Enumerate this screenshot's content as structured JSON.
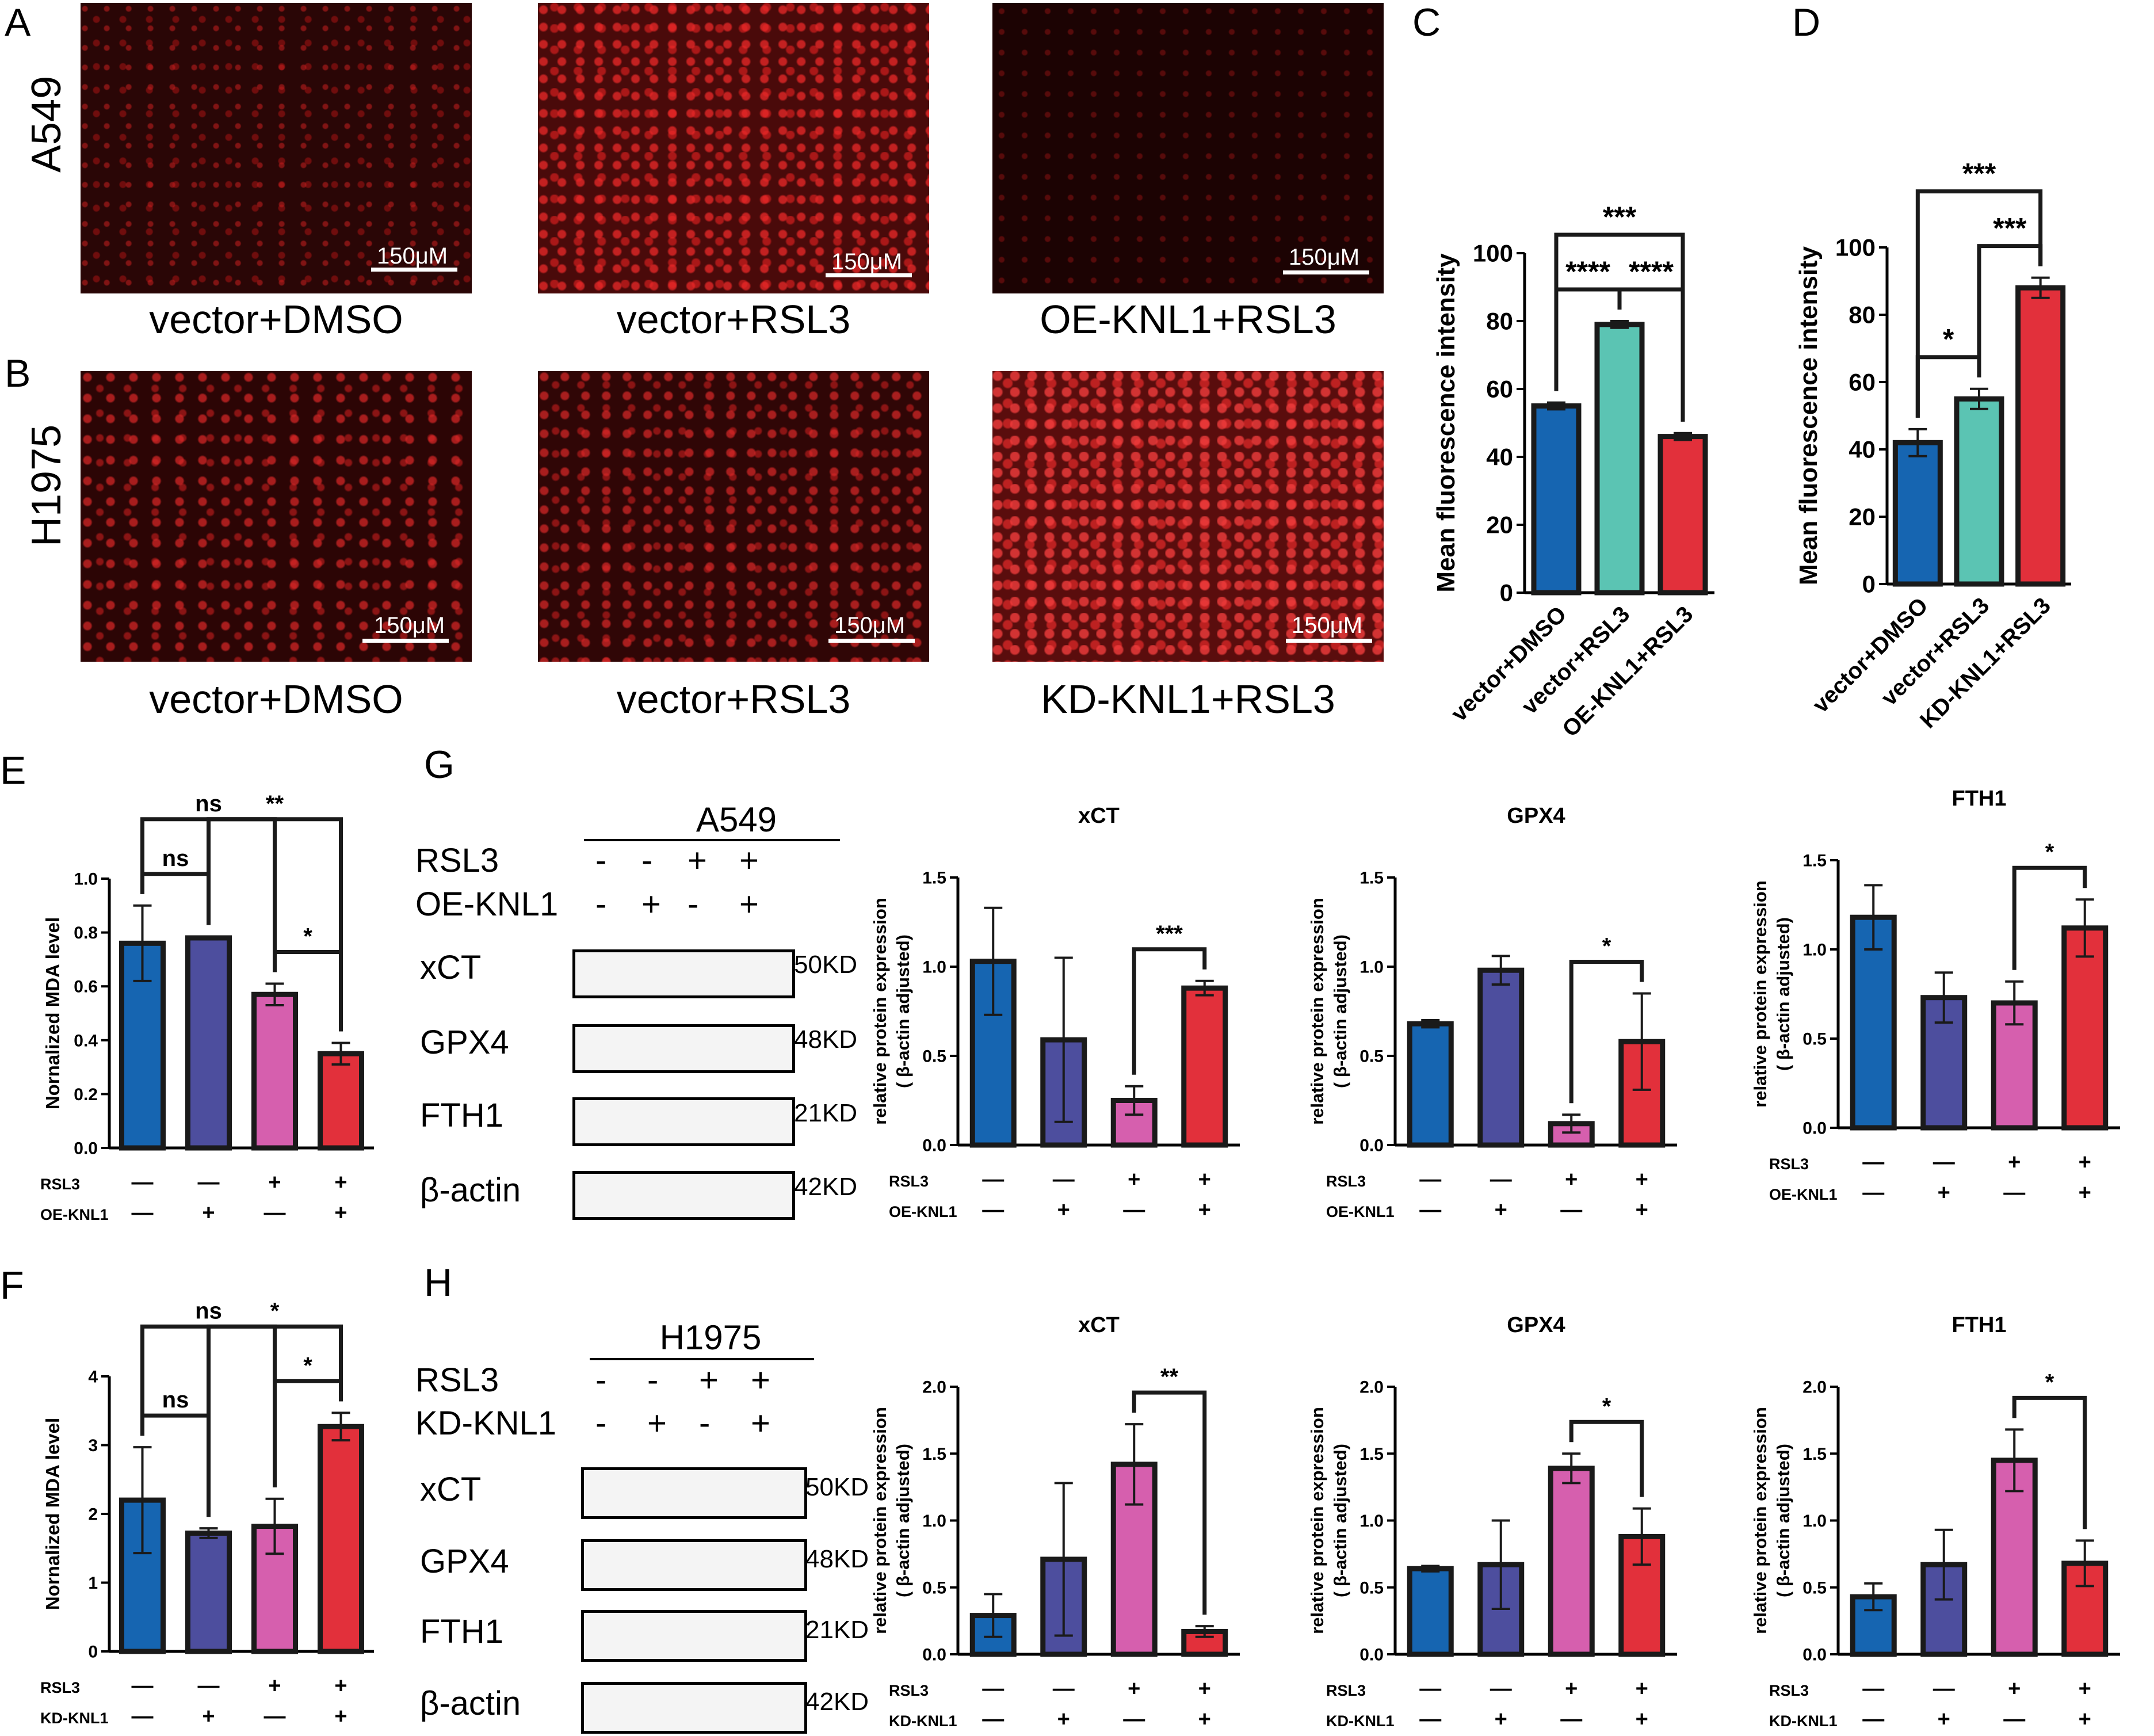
{
  "panel_letters": {
    "A": "A",
    "B": "B",
    "C": "C",
    "D": "D",
    "E": "E",
    "F": "F",
    "G": "G",
    "H": "H"
  },
  "row_labels": {
    "a549": "A549",
    "h1975": "H1975"
  },
  "micrographs": {
    "scale_bar": "150μM",
    "captions_a": [
      "vector+DMSO",
      "vector+RSL3",
      "OE-KNL1+RSL3"
    ],
    "captions_b": [
      "vector+DMSO",
      "vector+RSL3",
      "KD-KNL1+RSL3"
    ]
  },
  "western": {
    "g": {
      "cell": "A549",
      "rows": [
        "RSL3",
        "OE-KNL1"
      ],
      "signs": [
        [
          "-",
          "-",
          "+",
          "+"
        ],
        [
          "-",
          "+",
          "-",
          "+"
        ]
      ],
      "proteins": [
        "xCT",
        "GPX4",
        "FTH1",
        "β-actin"
      ],
      "sizes": [
        "50KD",
        "48KD",
        "21KD",
        "42KD"
      ]
    },
    "h": {
      "cell": "H1975",
      "rows": [
        "RSL3",
        "KD-KNL1"
      ],
      "signs": [
        [
          "-",
          "-",
          "+",
          "+"
        ],
        [
          "-",
          "+",
          "-",
          "+"
        ]
      ],
      "proteins": [
        "xCT",
        "GPX4",
        "FTH1",
        "β-actin"
      ],
      "sizes": [
        "50KD",
        "48KD",
        "21KD",
        "42KD"
      ]
    }
  },
  "colors": {
    "blue": "#1665b1",
    "purple": "#4d4e9e",
    "cyan": "#5bc4b3",
    "pink": "#d65fae",
    "red": "#e2303b"
  },
  "chart_data": [
    {
      "id": "C",
      "type": "bar",
      "categories": [
        "vector+DMSO",
        "vector+RSL3",
        "OE-KNL1+RSL3"
      ],
      "values": [
        55,
        79,
        46
      ],
      "errors": [
        1,
        1,
        1
      ],
      "colors": [
        "#1665b1",
        "#5bc4b3",
        "#e2303b"
      ],
      "ylabel": "Mean fluorescence intensity",
      "ylim": [
        0,
        100
      ],
      "yticks": [
        0,
        20,
        40,
        60,
        80,
        100
      ],
      "sig": [
        {
          "from": 0,
          "to": 1,
          "label": "****"
        },
        {
          "from": 1,
          "to": 2,
          "label": "****"
        },
        {
          "from": 0,
          "to": 2,
          "label": "***"
        }
      ]
    },
    {
      "id": "D",
      "type": "bar",
      "categories": [
        "vector+DMSO",
        "vector+RSL3",
        "KD-KNL1+RSL3"
      ],
      "values": [
        42,
        55,
        88
      ],
      "errors": [
        4,
        3,
        3
      ],
      "colors": [
        "#1665b1",
        "#5bc4b3",
        "#e2303b"
      ],
      "ylabel": "Mean fluorescence intensity",
      "ylim": [
        0,
        100
      ],
      "yticks": [
        0,
        20,
        40,
        60,
        80,
        100
      ],
      "sig": [
        {
          "from": 0,
          "to": 1,
          "label": "*"
        },
        {
          "from": 1,
          "to": 2,
          "label": "***"
        },
        {
          "from": 0,
          "to": 2,
          "label": "***"
        }
      ]
    },
    {
      "id": "E",
      "type": "bar",
      "ylabel": "Nornalized MDA level",
      "values": [
        0.76,
        0.78,
        0.57,
        0.35
      ],
      "errors": [
        0.14,
        0.005,
        0.04,
        0.04
      ],
      "ylim": [
        0,
        1.0
      ],
      "yticks": [
        0.0,
        0.2,
        0.4,
        0.6,
        0.8,
        1.0
      ],
      "row1": "RSL3",
      "row2": "OE-KNL1",
      "signs1": [
        "—",
        "—",
        "+",
        "+"
      ],
      "signs2": [
        "—",
        "+",
        "—",
        "+"
      ],
      "sig": [
        {
          "from": 0,
          "to": 1,
          "label": "ns"
        },
        {
          "from": 0,
          "to": 2,
          "label": "ns"
        },
        {
          "from": 2,
          "to": 3,
          "label": "*"
        },
        {
          "from": 1,
          "to": 3,
          "label": "**"
        }
      ]
    },
    {
      "id": "F",
      "type": "bar",
      "ylabel": "Nornalized MDA level",
      "values": [
        2.2,
        1.72,
        1.82,
        3.27
      ],
      "errors": [
        0.77,
        0.07,
        0.4,
        0.2
      ],
      "ylim": [
        0,
        4
      ],
      "yticks": [
        0,
        1,
        2,
        3,
        4
      ],
      "row1": "RSL3",
      "row2": "KD-KNL1",
      "signs1": [
        "—",
        "—",
        "+",
        "+"
      ],
      "signs2": [
        "—",
        "+",
        "—",
        "+"
      ],
      "sig": [
        {
          "from": 0,
          "to": 1,
          "label": "ns"
        },
        {
          "from": 2,
          "to": 3,
          "label": "*"
        },
        {
          "from": 1,
          "to": 3,
          "label": "*"
        },
        {
          "from": 0,
          "to": 2,
          "label": "ns"
        }
      ]
    },
    {
      "id": "G-xCT",
      "type": "bar",
      "title": "xCT",
      "ylabel": "relative protein expression",
      "ylabel2": "( β-actin adjusted)",
      "values": [
        1.03,
        0.59,
        0.25,
        0.88
      ],
      "errors": [
        0.3,
        0.46,
        0.08,
        0.04
      ],
      "ylim": [
        0,
        1.5
      ],
      "yticks": [
        0.0,
        0.5,
        1.0,
        1.5
      ],
      "row1": "RSL3",
      "row2": "OE-KNL1",
      "signs1": [
        "—",
        "—",
        "+",
        "+"
      ],
      "signs2": [
        "—",
        "+",
        "—",
        "+"
      ],
      "sig": [
        {
          "from": 2,
          "to": 3,
          "label": "***"
        }
      ]
    },
    {
      "id": "G-GPX4",
      "type": "bar",
      "title": "GPX4",
      "ylabel": "relative protein expression",
      "ylabel2": "( β-actin adjusted)",
      "values": [
        0.68,
        0.98,
        0.12,
        0.58
      ],
      "errors": [
        0.02,
        0.08,
        0.05,
        0.27
      ],
      "ylim": [
        0,
        1.5
      ],
      "yticks": [
        0.0,
        0.5,
        1.0,
        1.5
      ],
      "row1": "RSL3",
      "row2": "OE-KNL1",
      "signs1": [
        "—",
        "—",
        "+",
        "+"
      ],
      "signs2": [
        "—",
        "+",
        "—",
        "+"
      ],
      "sig": [
        {
          "from": 2,
          "to": 3,
          "label": "*"
        }
      ]
    },
    {
      "id": "G-FTH1",
      "type": "bar",
      "title": "FTH1",
      "ylabel": "relative protein expression",
      "ylabel2": "( β-actin adjusted)",
      "values": [
        1.18,
        0.73,
        0.7,
        1.12
      ],
      "errors": [
        0.18,
        0.14,
        0.12,
        0.16
      ],
      "ylim": [
        0,
        1.5
      ],
      "yticks": [
        0.0,
        0.5,
        1.0,
        1.5
      ],
      "row1": "RSL3",
      "row2": "OE-KNL1",
      "signs1": [
        "—",
        "—",
        "+",
        "+"
      ],
      "signs2": [
        "—",
        "+",
        "—",
        "+"
      ],
      "sig": [
        {
          "from": 2,
          "to": 3,
          "label": "*"
        }
      ]
    },
    {
      "id": "H-xCT",
      "type": "bar",
      "title": "xCT",
      "ylabel": "relative protein expression",
      "ylabel2": "( β-actin adjusted)",
      "values": [
        0.29,
        0.71,
        1.42,
        0.17
      ],
      "errors": [
        0.16,
        0.57,
        0.3,
        0.04
      ],
      "ylim": [
        0,
        2.0
      ],
      "yticks": [
        0.0,
        0.5,
        1.0,
        1.5,
        2.0
      ],
      "row1": "RSL3",
      "row2": "KD-KNL1",
      "signs1": [
        "—",
        "—",
        "+",
        "+"
      ],
      "signs2": [
        "—",
        "+",
        "—",
        "+"
      ],
      "sig": [
        {
          "from": 2,
          "to": 3,
          "label": "**"
        }
      ]
    },
    {
      "id": "H-GPX4",
      "type": "bar",
      "title": "GPX4",
      "ylabel": "relative protein expression",
      "ylabel2": "( β-actin adjusted)",
      "values": [
        0.64,
        0.67,
        1.39,
        0.88
      ],
      "errors": [
        0.02,
        0.33,
        0.11,
        0.21
      ],
      "ylim": [
        0,
        2.0
      ],
      "yticks": [
        0.0,
        0.5,
        1.0,
        1.5,
        2.0
      ],
      "row1": "RSL3",
      "row2": "KD-KNL1",
      "signs1": [
        "—",
        "—",
        "+",
        "+"
      ],
      "signs2": [
        "—",
        "+",
        "—",
        "+"
      ],
      "sig": [
        {
          "from": 2,
          "to": 3,
          "label": "*"
        }
      ]
    },
    {
      "id": "H-FTH1",
      "type": "bar",
      "title": "FTH1",
      "ylabel": "relative protein expression",
      "ylabel2": "( β-actin adjusted)",
      "values": [
        0.43,
        0.67,
        1.45,
        0.68
      ],
      "errors": [
        0.1,
        0.26,
        0.23,
        0.17
      ],
      "ylim": [
        0,
        2.0
      ],
      "yticks": [
        0.0,
        0.5,
        1.0,
        1.5,
        2.0
      ],
      "row1": "RSL3",
      "row2": "KD-KNL1",
      "signs1": [
        "—",
        "—",
        "+",
        "+"
      ],
      "signs2": [
        "—",
        "+",
        "—",
        "+"
      ],
      "sig": [
        {
          "from": 2,
          "to": 3,
          "label": "*"
        }
      ]
    }
  ]
}
